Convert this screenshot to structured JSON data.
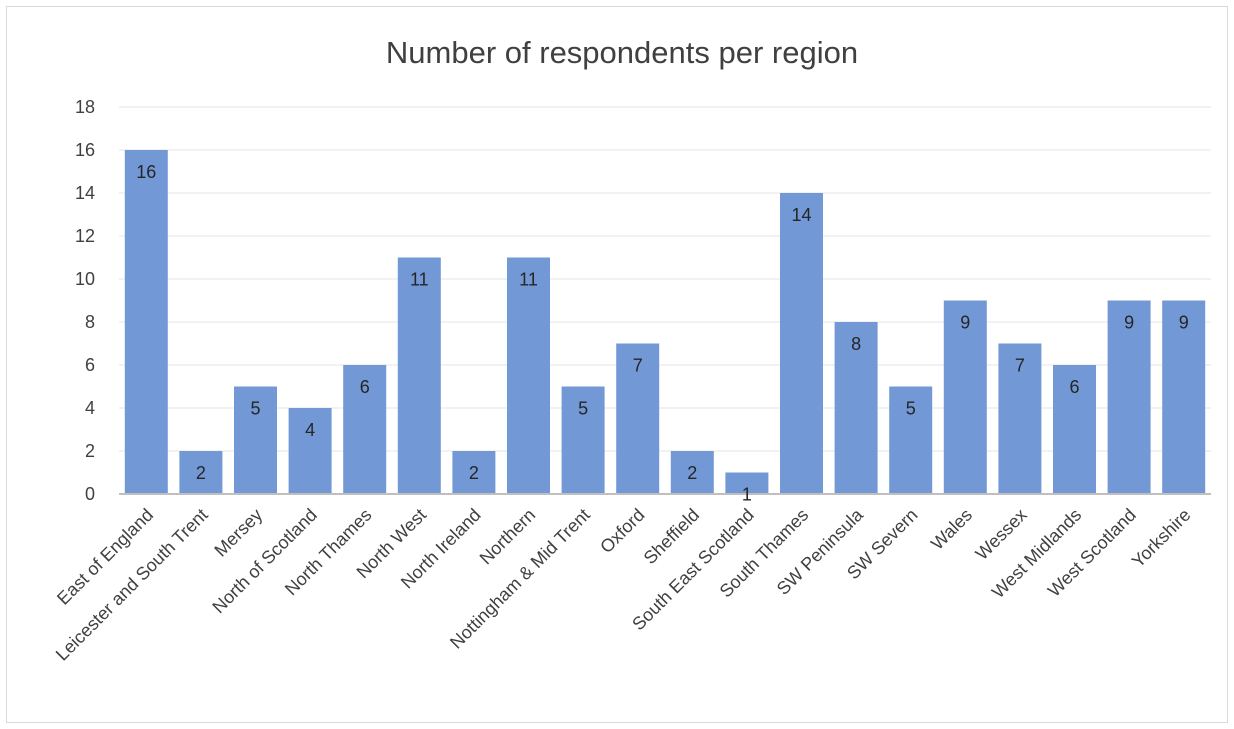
{
  "chart_data": {
    "type": "bar",
    "title": "Number of respondents per region",
    "xlabel": "",
    "ylabel": "",
    "categories": [
      "East of England",
      "Leicester and South Trent",
      "Mersey",
      "North of Scotland",
      "North Thames",
      "North West",
      "North Ireland",
      "Northern",
      "Nottingham & Mid Trent",
      "Oxford",
      "Sheffield",
      "South East Scotland",
      "South Thames",
      "SW Peninsula",
      "SW Severn",
      "Wales",
      "Wessex",
      "West Midlands",
      "West Scotland",
      "Yorkshire"
    ],
    "values": [
      16,
      2,
      5,
      4,
      6,
      11,
      2,
      11,
      5,
      7,
      2,
      1,
      14,
      8,
      5,
      9,
      7,
      6,
      9,
      9
    ],
    "ylim": [
      0,
      18
    ],
    "yticks": [
      "0",
      "2",
      "4",
      "6",
      "8",
      "10",
      "12",
      "14",
      "16",
      "18"
    ],
    "grid": true,
    "legend": "none",
    "data_labels": true,
    "colors": {
      "bar": "#7298d6",
      "gridline": "#e6e6e6",
      "axis": "#bfbfbf",
      "text": "#404040"
    }
  }
}
